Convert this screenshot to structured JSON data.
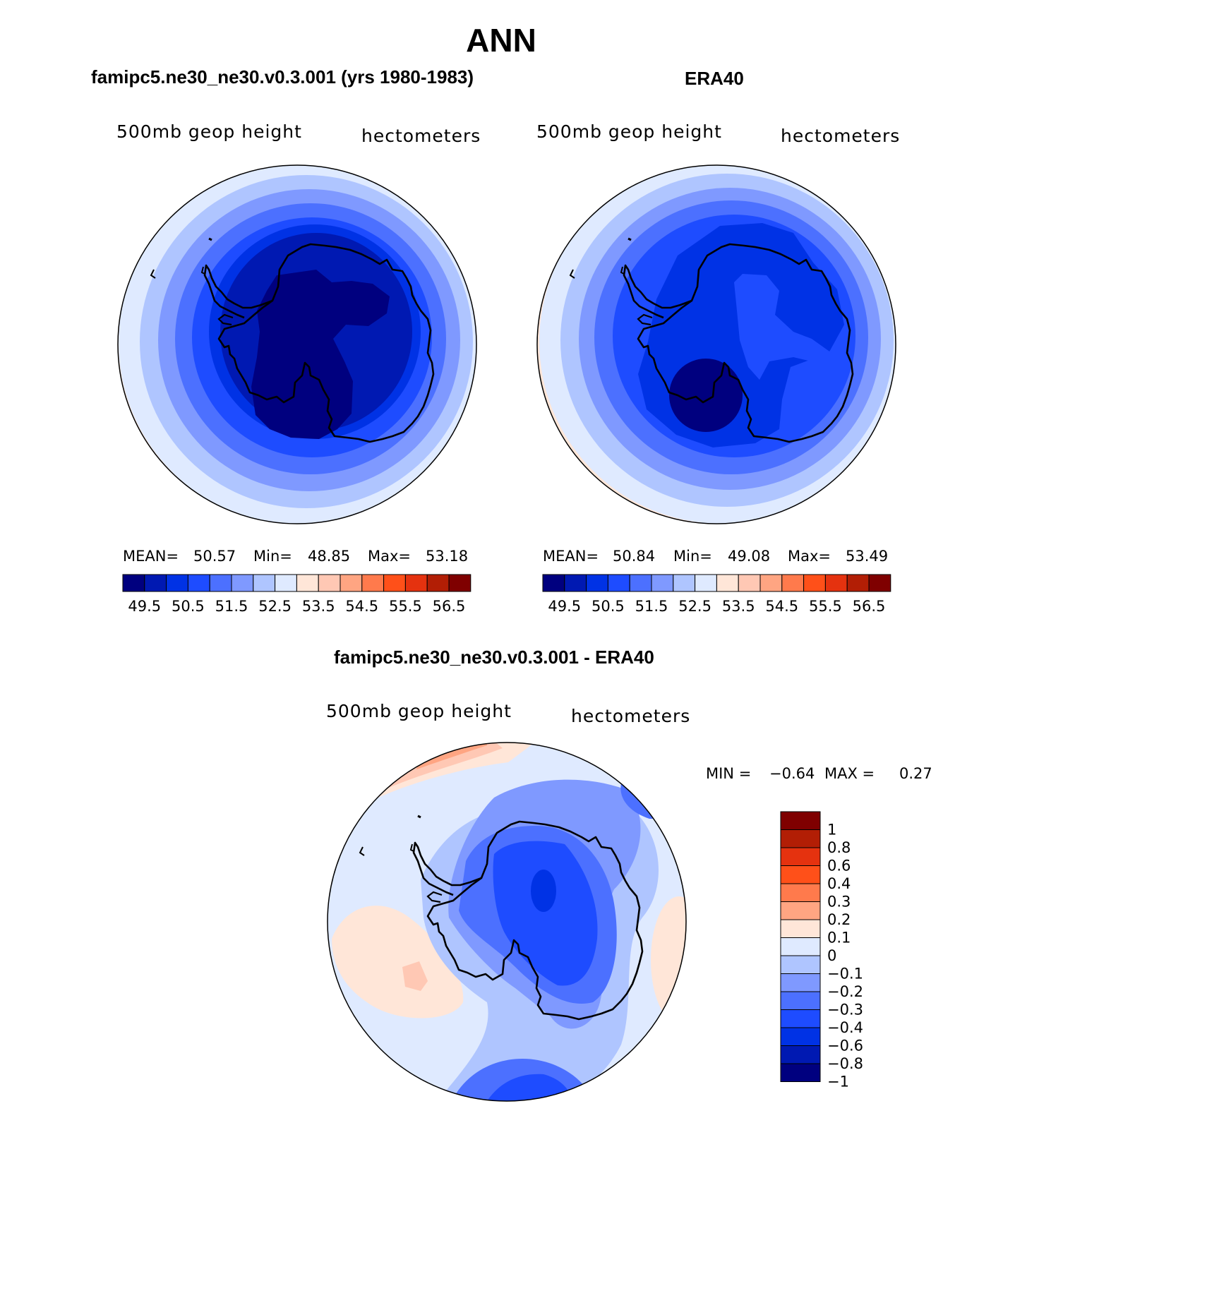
{
  "title": "ANN",
  "panels": [
    {
      "id": "model",
      "header": "famipc5.ne30_ne30.v0.3.001 (yrs 1980-1983)",
      "variable": "500mb geop height",
      "units": "hectometers",
      "stats": {
        "mean_label": "MEAN=",
        "mean": "50.57",
        "min_label": "Min=",
        "min": "48.85",
        "max_label": "Max=",
        "max": "53.18"
      }
    },
    {
      "id": "obs",
      "header": "ERA40",
      "variable": "500mb geop height",
      "units": "hectometers",
      "stats": {
        "mean_label": "MEAN=",
        "mean": "50.84",
        "min_label": "Min=",
        "min": "49.08",
        "max_label": "Max=",
        "max": "53.49"
      }
    }
  ],
  "diff_panel": {
    "header": "famipc5.ne30_ne30.v0.3.001 - ERA40",
    "variable": "500mb geop height",
    "units": "hectometers",
    "min_label": "MIN =",
    "min": "−0.64",
    "max_label": "MAX =",
    "max": "0.27"
  },
  "colorbar_abs": {
    "colors": [
      "#00007f",
      "#0019b2",
      "#0032e5",
      "#1e4cff",
      "#4c70ff",
      "#7f99ff",
      "#afc5ff",
      "#dfeaff",
      "#ffe6d8",
      "#ffc8b4",
      "#ffa582",
      "#ff7a4c",
      "#ff5019",
      "#e5320f",
      "#b21e05",
      "#7f0000"
    ],
    "labels": [
      "49.5",
      "50.5",
      "51.5",
      "52.5",
      "53.5",
      "54.5",
      "55.5",
      "56.5"
    ]
  },
  "colorbar_diff": {
    "colors": [
      "#7f0000",
      "#b21e05",
      "#e5320f",
      "#ff5019",
      "#ff7a4c",
      "#ffa582",
      "#ffe6d8",
      "#dfeaff",
      "#afc5ff",
      "#7f99ff",
      "#4c70ff",
      "#1e4cff",
      "#0032e5",
      "#0019b2",
      "#00007f"
    ],
    "labels": [
      "1",
      "0.8",
      "0.6",
      "0.4",
      "0.3",
      "0.2",
      "0.1",
      "0",
      "−0.1",
      "−0.2",
      "−0.3",
      "−0.4",
      "−0.6",
      "−0.8",
      "−1"
    ]
  },
  "map": {
    "projection": "south-polar stereographic",
    "region": "Antarctica",
    "field": "500mb geopotential height"
  }
}
